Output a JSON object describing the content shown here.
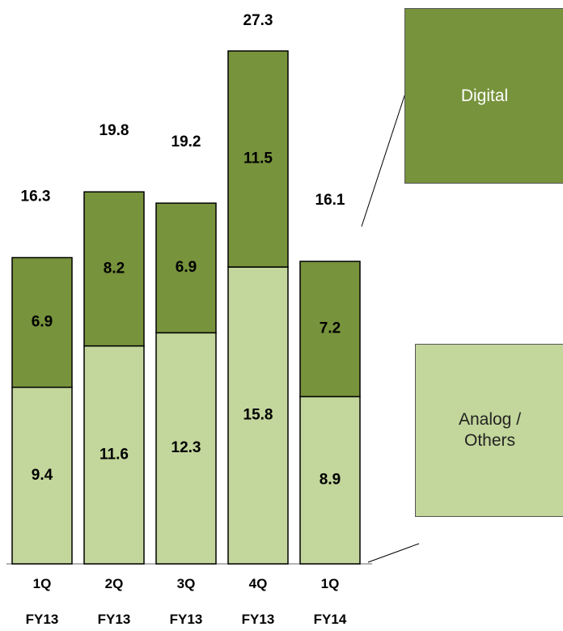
{
  "chart_data": {
    "type": "stacked_bar",
    "categories": [
      "1Q\nFY13",
      "2Q\nFY13",
      "3Q\nFY13",
      "4Q\nFY13",
      "1Q\nFY14"
    ],
    "series": [
      {
        "name": "Analog /\nOthers",
        "color": "#c3d69b",
        "values": [
          9.4,
          11.6,
          12.3,
          15.8,
          8.9
        ]
      },
      {
        "name": "Digital",
        "color": "#77933c",
        "values": [
          6.9,
          8.2,
          6.9,
          11.5,
          7.2
        ]
      }
    ],
    "totals": [
      "16.3",
      "19.8",
      "19.2",
      "27.3",
      "16.1"
    ]
  }
}
